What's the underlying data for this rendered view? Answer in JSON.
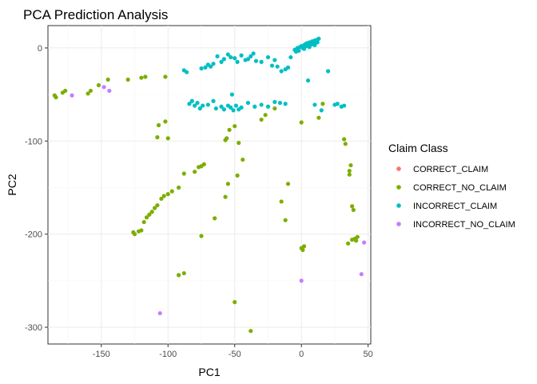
{
  "chart_data": {
    "type": "scatter",
    "title": "PCA Prediction Analysis",
    "xlabel": "PC1",
    "ylabel": "PC2",
    "xlim": [
      -190,
      52
    ],
    "ylim": [
      -318,
      24
    ],
    "xticks": [
      -150,
      -100,
      -50,
      0,
      50
    ],
    "yticks": [
      -300,
      -200,
      -100,
      0
    ],
    "grid": true,
    "legend": {
      "title": "Claim Class",
      "placement": "right",
      "entries": [
        "CORRECT_CLAIM",
        "CORRECT_NO_CLAIM",
        "INCORRECT_CLAIM",
        "INCORRECT_NO_CLAIM"
      ]
    },
    "colors": {
      "CORRECT_CLAIM": "#f8766d",
      "CORRECT_NO_CLAIM": "#7cae00",
      "INCORRECT_CLAIM": "#00bfc4",
      "INCORRECT_NO_CLAIM": "#c77cff"
    },
    "series": [
      {
        "name": "CORRECT_CLAIM",
        "x": [],
        "y": []
      },
      {
        "name": "CORRECT_NO_CLAIM",
        "x": [
          -185,
          -184,
          -179,
          -177,
          -160,
          -158,
          -152,
          -145,
          -130,
          -120,
          -117,
          -102,
          -126,
          -125,
          -122,
          -120,
          -118,
          -116,
          -114,
          -112,
          -110,
          -108,
          -105,
          -103,
          -100,
          -97,
          -92,
          -88,
          -80,
          -77,
          -75,
          -73,
          -65,
          -57,
          -55,
          -48,
          -44,
          -47,
          -56,
          -57,
          -54,
          -50,
          -30,
          -27,
          -20,
          -15,
          -12,
          -10,
          0,
          0,
          1,
          2,
          13,
          16,
          32,
          33,
          36,
          36,
          37,
          38,
          39,
          40,
          41,
          42,
          35,
          38,
          -107,
          -102,
          -100,
          -108,
          -92,
          -88,
          -75,
          -50,
          -38
        ],
        "y": [
          -51,
          -53,
          -48,
          -46,
          -49,
          -46,
          -40,
          -34,
          -34,
          -32,
          -31,
          -31,
          -198,
          -200,
          -197,
          -196,
          -187,
          -182,
          -179,
          -176,
          -172,
          -169,
          -162,
          -159,
          -157,
          -154,
          -150,
          -135,
          -133,
          -128,
          -127,
          -125,
          -183,
          -160,
          -146,
          -137,
          -120,
          -102,
          -97,
          -99,
          -88,
          -84,
          -77,
          -72,
          -65,
          -165,
          -185,
          -146,
          -80,
          -215,
          -217,
          -213,
          -75,
          -60,
          -98,
          -103,
          -132,
          -136,
          -126,
          -170,
          -174,
          -205,
          -207,
          -203,
          -210,
          -206,
          -83,
          -79,
          -97,
          -96,
          -244,
          -242,
          -202,
          -273,
          -304
        ]
      },
      {
        "name": "INCORRECT_CLAIM",
        "x": [
          -88,
          -86,
          -84,
          -82,
          -75,
          -72,
          -70,
          -68,
          -66,
          -63,
          -60,
          -58,
          -55,
          -53,
          -52,
          -50,
          -48,
          -45,
          -42,
          -40,
          -38,
          -36,
          -34,
          -30,
          -25,
          -22,
          -20,
          -18,
          -15,
          -12,
          -10,
          -8,
          -5,
          -4,
          -3,
          -2,
          -1,
          0,
          1,
          2,
          3,
          4,
          5,
          6,
          7,
          8,
          9,
          10,
          11,
          12,
          13,
          2,
          4,
          6,
          8,
          10,
          12,
          -80,
          -78,
          -76,
          -74,
          -70,
          -66,
          -64,
          -60,
          -58,
          -55,
          -53,
          -51,
          -49,
          -47,
          -45,
          -40,
          -35,
          -30,
          -25,
          -20,
          -16,
          -12,
          5,
          10,
          15,
          20,
          25,
          27,
          30,
          32
        ],
        "y": [
          -24,
          -26,
          -60,
          -57,
          -22,
          -21,
          -18,
          -20,
          -17,
          -9,
          -15,
          -12,
          -7,
          -10,
          -50,
          -11,
          -15,
          -8,
          -13,
          -12,
          -9,
          -6,
          -14,
          -15,
          -10,
          -19,
          -13,
          -20,
          -25,
          -23,
          -21,
          -10,
          -2,
          -4,
          0,
          -3,
          1,
          2,
          0,
          3,
          4,
          5,
          3,
          6,
          4,
          7,
          5,
          8,
          6,
          9,
          10,
          -1,
          2,
          1,
          4,
          3,
          6,
          -62,
          -59,
          -65,
          -62,
          -61,
          -57,
          -65,
          -63,
          -66,
          -62,
          -64,
          -67,
          -62,
          -66,
          -64,
          -59,
          -63,
          -61,
          -63,
          -58,
          -59,
          -60,
          -35,
          -61,
          -67,
          -25,
          -61,
          -60,
          -63,
          -62
        ]
      },
      {
        "name": "INCORRECT_NO_CLAIM",
        "x": [
          -172,
          -148,
          -144,
          -106,
          0,
          45,
          47
        ],
        "y": [
          -51,
          -42,
          -46,
          -285,
          -250,
          -243,
          -209
        ]
      }
    ]
  }
}
